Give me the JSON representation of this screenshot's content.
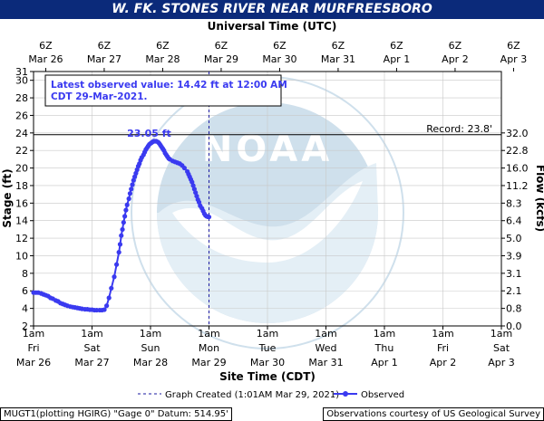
{
  "title": "W. FK. STONES RIVER NEAR MURFREESBORO",
  "chart_data": {
    "type": "line",
    "top_axis_title": "Universal Time (UTC)",
    "top_ticks": [
      {
        "line1": "6Z",
        "line2": "Mar 26"
      },
      {
        "line1": "6Z",
        "line2": "Mar 27"
      },
      {
        "line1": "6Z",
        "line2": "Mar 28"
      },
      {
        "line1": "6Z",
        "line2": "Mar 29"
      },
      {
        "line1": "6Z",
        "line2": "Mar 30"
      },
      {
        "line1": "6Z",
        "line2": "Mar 31"
      },
      {
        "line1": "6Z",
        "line2": "Apr  1"
      },
      {
        "line1": "6Z",
        "line2": "Apr  2"
      },
      {
        "line1": "6Z",
        "line2": "Apr  3"
      }
    ],
    "bottom_axis_title": "Site Time (CDT)",
    "bottom_ticks": [
      {
        "line1": "1am",
        "line2": "Fri",
        "line3": "Mar 26"
      },
      {
        "line1": "1am",
        "line2": "Sat",
        "line3": "Mar 27"
      },
      {
        "line1": "1am",
        "line2": "Sun",
        "line3": "Mar 28"
      },
      {
        "line1": "1am",
        "line2": "Mon",
        "line3": "Mar 29"
      },
      {
        "line1": "1am",
        "line2": "Tue",
        "line3": "Mar 30"
      },
      {
        "line1": "1am",
        "line2": "Wed",
        "line3": "Mar 31"
      },
      {
        "line1": "1am",
        "line2": "Thu",
        "line3": "Apr 1"
      },
      {
        "line1": "1am",
        "line2": "Fri",
        "line3": "Apr 2"
      },
      {
        "line1": "1am",
        "line2": "Sat",
        "line3": "Apr 3"
      }
    ],
    "ylabel": "Stage (ft)",
    "y2label": "Flow (kcfs)",
    "ylim": [
      2,
      31
    ],
    "yticks": [
      2,
      4,
      6,
      8,
      10,
      12,
      14,
      16,
      18,
      20,
      22,
      24,
      26,
      28,
      30,
      31
    ],
    "flow_ticks": [
      {
        "stage": 2,
        "label": "0.0"
      },
      {
        "stage": 4,
        "label": "0.8"
      },
      {
        "stage": 6,
        "label": "2.1"
      },
      {
        "stage": 8,
        "label": "3.1"
      },
      {
        "stage": 10,
        "label": "3.9"
      },
      {
        "stage": 12,
        "label": "5.0"
      },
      {
        "stage": 14,
        "label": "6.4"
      },
      {
        "stage": 16,
        "label": "8.3"
      },
      {
        "stage": 18,
        "label": "11.2"
      },
      {
        "stage": 20,
        "label": "16.0"
      },
      {
        "stage": 22,
        "label": "22.8"
      },
      {
        "stage": 24,
        "label": "32.0"
      }
    ],
    "record": {
      "value": 23.8,
      "label": "Record: 23.8'"
    },
    "peak": {
      "day": 2.1,
      "value": 23.05,
      "label": "23.05 ft"
    },
    "latest_observation": "Latest observed value: 14.42 ft at 12:00 AM CDT 29-Mar-2021.",
    "graph_created_day": 3.0,
    "grid": true,
    "series": [
      {
        "name": "Observed",
        "color": "#3a3af0",
        "x_days": [
          0.0,
          0.04,
          0.08,
          0.13,
          0.17,
          0.21,
          0.25,
          0.29,
          0.33,
          0.38,
          0.42,
          0.46,
          0.5,
          0.54,
          0.58,
          0.63,
          0.67,
          0.71,
          0.75,
          0.79,
          0.83,
          0.88,
          0.92,
          0.96,
          1.0,
          1.04,
          1.08,
          1.13,
          1.17,
          1.21,
          1.25,
          1.29,
          1.33,
          1.38,
          1.42,
          1.46,
          1.48,
          1.5,
          1.52,
          1.54,
          1.56,
          1.58,
          1.6,
          1.63,
          1.65,
          1.67,
          1.69,
          1.71,
          1.73,
          1.75,
          1.77,
          1.79,
          1.81,
          1.83,
          1.85,
          1.88,
          1.9,
          1.92,
          1.94,
          1.96,
          1.98,
          2.0,
          2.02,
          2.04,
          2.06,
          2.08,
          2.1,
          2.13,
          2.15,
          2.17,
          2.19,
          2.21,
          2.23,
          2.25,
          2.27,
          2.29,
          2.31,
          2.33,
          2.38,
          2.42,
          2.46,
          2.5,
          2.54,
          2.58,
          2.63,
          2.65,
          2.67,
          2.69,
          2.71,
          2.73,
          2.75,
          2.77,
          2.79,
          2.81,
          2.83,
          2.85,
          2.88,
          2.9,
          2.92,
          2.94,
          2.96,
          2.98,
          3.0
        ],
        "stage_ft": [
          5.8,
          5.8,
          5.8,
          5.7,
          5.6,
          5.5,
          5.4,
          5.2,
          5.1,
          4.9,
          4.8,
          4.6,
          4.5,
          4.4,
          4.3,
          4.2,
          4.15,
          4.1,
          4.05,
          4.0,
          3.95,
          3.9,
          3.9,
          3.85,
          3.85,
          3.8,
          3.8,
          3.8,
          3.8,
          3.85,
          4.3,
          5.2,
          6.3,
          7.6,
          9.0,
          10.4,
          11.3,
          12.3,
          13.0,
          13.8,
          14.5,
          15.2,
          15.8,
          16.5,
          17.1,
          17.6,
          18.1,
          18.6,
          19.0,
          19.4,
          19.8,
          20.2,
          20.5,
          20.9,
          21.2,
          21.5,
          21.8,
          22.1,
          22.3,
          22.5,
          22.7,
          22.8,
          22.9,
          23.0,
          23.05,
          23.05,
          23.05,
          22.95,
          22.8,
          22.6,
          22.4,
          22.2,
          22.0,
          21.7,
          21.5,
          21.3,
          21.1,
          21.0,
          20.8,
          20.7,
          20.6,
          20.5,
          20.3,
          20.0,
          19.6,
          19.3,
          19.0,
          18.7,
          18.4,
          18.0,
          17.6,
          17.2,
          16.8,
          16.4,
          16.1,
          15.7,
          15.4,
          15.1,
          14.8,
          14.6,
          14.5,
          14.45,
          14.42
        ]
      }
    ],
    "legend": {
      "created_label": "Graph Created (1:01AM Mar 29, 2021)",
      "observed_label": "Observed"
    }
  },
  "footer": {
    "left": "MUGT1(plotting HGIRG) \"Gage 0\" Datum:  514.95'",
    "right": "Observations courtesy of US Geological Survey"
  },
  "colors": {
    "title_bg": "#0b2a7a",
    "series": "#3a3af0",
    "text_blue": "#3a3af0",
    "watermark": "#a9c7de"
  }
}
